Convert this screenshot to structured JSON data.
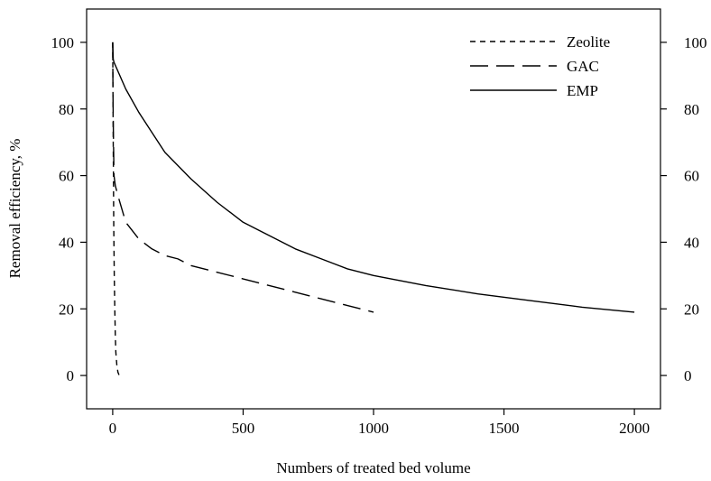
{
  "chart_data": {
    "type": "line",
    "xlabel": "Numbers of treated bed volume",
    "ylabel": "Removal efficiency, %",
    "xlim": [
      -100,
      2100
    ],
    "ylim": [
      -10,
      110
    ],
    "xticks": [
      0,
      500,
      1000,
      1500,
      2000
    ],
    "yticks": [
      0,
      20,
      40,
      60,
      80,
      100
    ],
    "x_tick_labels": [
      "0",
      "500",
      "1000",
      "1500",
      "2000"
    ],
    "y_tick_labels": [
      "0",
      "20",
      "40",
      "60",
      "80",
      "100"
    ],
    "y_right_tick_labels": [
      "0",
      "20",
      "40",
      "60",
      "80",
      "100"
    ],
    "legend_position": "top-right",
    "grid": false,
    "series": [
      {
        "name": "Zeolite",
        "style": "short-dash",
        "color": "#000000",
        "x": [
          0,
          2,
          4,
          6,
          8,
          10,
          12,
          16,
          20,
          25
        ],
        "y": [
          100,
          70,
          45,
          30,
          20,
          12,
          7,
          3,
          1,
          0
        ]
      },
      {
        "name": "GAC",
        "style": "long-dash",
        "color": "#000000",
        "x": [
          0,
          1,
          3,
          5,
          10,
          20,
          50,
          100,
          150,
          200,
          250,
          300,
          400,
          500,
          600,
          700,
          800,
          900,
          1000
        ],
        "y": [
          100,
          85,
          70,
          60,
          57,
          54,
          46,
          41,
          38,
          36,
          35,
          33,
          31,
          29,
          27,
          25,
          23,
          21,
          19
        ]
      },
      {
        "name": "EMP",
        "style": "solid",
        "color": "#000000",
        "x": [
          0,
          2,
          5,
          50,
          100,
          150,
          200,
          300,
          400,
          500,
          600,
          700,
          800,
          900,
          1000,
          1200,
          1400,
          1600,
          1800,
          2000
        ],
        "y": [
          100,
          95,
          94,
          86,
          79,
          73,
          67,
          59,
          52,
          46,
          42,
          38,
          35,
          32,
          30,
          27,
          24.5,
          22.5,
          20.5,
          19
        ]
      }
    ]
  }
}
